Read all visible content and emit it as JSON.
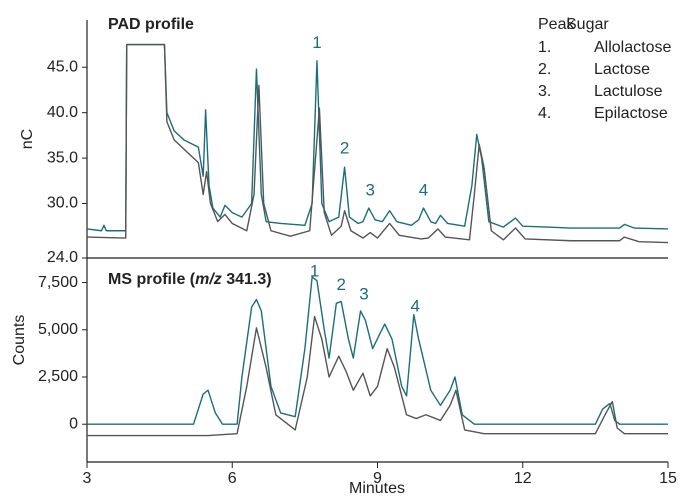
{
  "chart_data": [
    {
      "type": "line",
      "title": "PAD profile",
      "ylabel": "nC",
      "ylim": [
        24,
        50.2
      ],
      "yticks": [
        {
          "value": 24,
          "label": "24.0"
        },
        {
          "value": 30,
          "label": "30.0"
        },
        {
          "value": 35,
          "label": "35.0"
        },
        {
          "value": 40,
          "label": "40.0"
        },
        {
          "value": 45,
          "label": "45.0"
        }
      ],
      "xlim": [
        3,
        15
      ],
      "series": [
        {
          "color": "#1b6e7e",
          "x": [
            3.0,
            3.3,
            3.35,
            3.4,
            3.8,
            3.82,
            4.6,
            4.65,
            4.8,
            5.0,
            5.3,
            5.4,
            5.45,
            5.52,
            5.6,
            5.75,
            5.85,
            6.0,
            6.2,
            6.4,
            6.5,
            6.6,
            6.7,
            7.0,
            7.5,
            7.65,
            7.75,
            7.85,
            8.0,
            8.2,
            8.32,
            8.42,
            8.6,
            8.7,
            8.82,
            8.95,
            9.1,
            9.25,
            9.4,
            9.7,
            9.85,
            9.95,
            10.1,
            10.2,
            10.3,
            10.45,
            10.8,
            10.95,
            11.05,
            11.15,
            11.3,
            11.6,
            11.85,
            12.0,
            12.5,
            13.0,
            14.0,
            14.1,
            14.3,
            15.0
          ],
          "values": [
            27.2,
            27.0,
            27.6,
            27.0,
            27.0,
            47.5,
            47.5,
            40,
            38,
            37,
            36.2,
            33,
            40.3,
            32,
            29.5,
            28.5,
            29.8,
            29,
            28.5,
            30,
            44.8,
            31,
            28,
            27.8,
            27.6,
            30,
            45.7,
            30,
            28,
            28.5,
            34,
            28.5,
            27.8,
            28,
            29.5,
            28.2,
            28,
            29.2,
            28,
            27.6,
            28.2,
            29.5,
            28,
            27.8,
            28.7,
            27.8,
            27.5,
            32,
            37.6,
            35,
            28,
            27.4,
            28.4,
            27.5,
            27.4,
            27.3,
            27.3,
            27.7,
            27.3,
            27.2
          ]
        },
        {
          "color": "#555555",
          "x": [
            3.0,
            3.8,
            3.82,
            4.6,
            4.65,
            4.8,
            5.0,
            5.3,
            5.4,
            5.47,
            5.55,
            5.7,
            5.85,
            6.0,
            6.3,
            6.45,
            6.55,
            6.65,
            6.8,
            7.2,
            7.6,
            7.72,
            7.8,
            7.9,
            8.05,
            8.25,
            8.32,
            8.45,
            8.7,
            8.85,
            9.0,
            9.25,
            9.45,
            9.9,
            10.05,
            10.25,
            10.4,
            10.9,
            11.0,
            11.1,
            11.2,
            11.35,
            11.6,
            11.85,
            12.05,
            13.0,
            14.0,
            14.1,
            14.4,
            15.0
          ],
          "values": [
            26.3,
            26.2,
            47.5,
            47.5,
            39,
            37,
            36,
            34.5,
            31,
            33.5,
            30,
            28,
            28.8,
            27.8,
            27,
            31,
            43,
            30,
            27,
            26.4,
            27,
            35,
            40.5,
            29,
            26.5,
            27.5,
            29.2,
            27,
            26.2,
            26.8,
            26.2,
            27.8,
            26.5,
            26.1,
            26.2,
            27.2,
            26.3,
            26,
            31,
            36.5,
            34,
            27,
            26,
            27.3,
            26.1,
            25.9,
            25.9,
            26.3,
            25.8,
            25.7
          ]
        }
      ],
      "annotations": [
        {
          "text": "1",
          "x": 7.75,
          "y": 47.6
        },
        {
          "text": "2",
          "x": 8.32,
          "y": 36
        },
        {
          "text": "3",
          "x": 8.85,
          "y": 31.4
        },
        {
          "text": "4",
          "x": 9.95,
          "y": 31.4
        }
      ],
      "legend_table": {
        "headers": [
          "Peak",
          "Sugar"
        ],
        "rows": [
          [
            "1.",
            "Allolactose"
          ],
          [
            "2.",
            "Lactose"
          ],
          [
            "3.",
            "Lactulose"
          ],
          [
            "4.",
            "Epilactose"
          ]
        ]
      }
    },
    {
      "type": "line",
      "title_parts": [
        "MS profile (",
        "m/z",
        " 341.3)"
      ],
      "ylabel": "Counts",
      "xlabel": "Minutes",
      "ylim": [
        -2000,
        8800
      ],
      "yticks": [
        0,
        {
          "value": 2500,
          "label": "2,500"
        },
        {
          "value": 5000,
          "label": "5,000"
        },
        {
          "value": 7500,
          "label": "7,500"
        }
      ],
      "xlim": [
        3,
        15
      ],
      "xticks": [
        3,
        6,
        9,
        12,
        15
      ],
      "series": [
        {
          "color": "#1b6e7e",
          "x": [
            3.0,
            5.2,
            5.4,
            5.5,
            5.65,
            5.8,
            6.1,
            6.2,
            6.4,
            6.5,
            6.6,
            6.8,
            7.0,
            7.3,
            7.5,
            7.65,
            7.75,
            7.9,
            8.0,
            8.15,
            8.25,
            8.4,
            8.5,
            8.65,
            8.75,
            8.9,
            9.05,
            9.15,
            9.3,
            9.5,
            9.6,
            9.75,
            9.85,
            10.1,
            10.3,
            10.5,
            10.6,
            10.75,
            11.0,
            13.5,
            13.65,
            13.8,
            13.9,
            14.0,
            15.0
          ],
          "values": [
            0,
            0,
            1600,
            1800,
            600,
            0,
            0,
            2500,
            6200,
            6600,
            6000,
            2000,
            600,
            400,
            4000,
            7800,
            7600,
            5000,
            3500,
            6400,
            6500,
            4500,
            3500,
            6000,
            5500,
            4000,
            4800,
            5300,
            4500,
            2000,
            1500,
            5800,
            4500,
            1800,
            1000,
            1800,
            2500,
            500,
            0,
            0,
            800,
            1100,
            200,
            0,
            0
          ]
        },
        {
          "color": "#555555",
          "x": [
            3.0,
            5.5,
            6.1,
            6.3,
            6.5,
            6.7,
            6.9,
            7.3,
            7.55,
            7.7,
            7.85,
            8.0,
            8.2,
            8.35,
            8.5,
            8.7,
            8.85,
            9.0,
            9.2,
            9.35,
            9.6,
            9.8,
            10.0,
            10.3,
            10.5,
            10.62,
            10.8,
            11.2,
            13.5,
            13.7,
            13.85,
            13.95,
            14.1,
            15.0
          ],
          "values": [
            -600,
            -600,
            -500,
            2000,
            5100,
            3000,
            500,
            -300,
            2500,
            5700,
            4500,
            2500,
            3600,
            2800,
            1800,
            2700,
            1500,
            2000,
            4000,
            3000,
            500,
            300,
            500,
            200,
            1000,
            1800,
            -300,
            -500,
            -500,
            500,
            1200,
            -200,
            -500,
            -500
          ]
        }
      ],
      "annotations": [
        {
          "text": "1",
          "x": 7.7,
          "y": 8050
        },
        {
          "text": "2",
          "x": 8.25,
          "y": 7350
        },
        {
          "text": "3",
          "x": 8.72,
          "y": 6850
        },
        {
          "text": "4",
          "x": 9.78,
          "y": 6200
        }
      ]
    }
  ]
}
